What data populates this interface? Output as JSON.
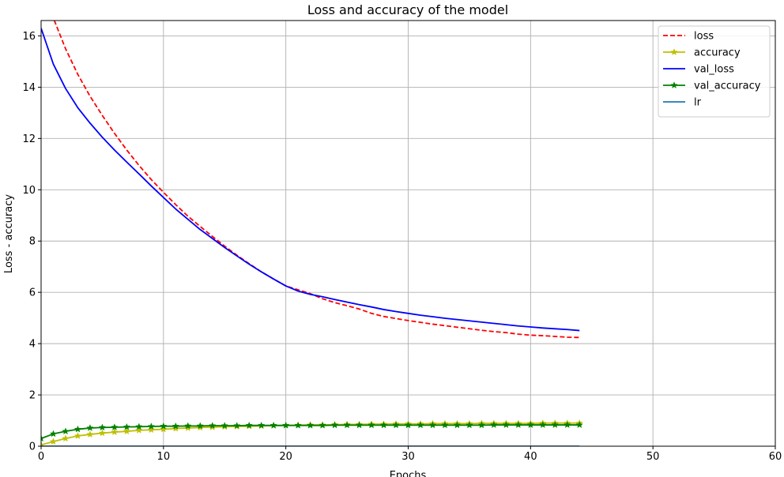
{
  "chart_data": {
    "type": "line",
    "title": "Loss and accuracy of the model",
    "xlabel": "Epochs",
    "ylabel": "Loss - accuracy",
    "xlim": [
      0,
      60
    ],
    "ylim": [
      0,
      16.6
    ],
    "xticks": [
      0,
      10,
      20,
      30,
      40,
      50,
      60
    ],
    "yticks": [
      0,
      2,
      4,
      6,
      8,
      10,
      12,
      14,
      16
    ],
    "grid": true,
    "legend_position": "top-right",
    "x": [
      0,
      1,
      2,
      3,
      4,
      5,
      6,
      7,
      8,
      9,
      10,
      11,
      12,
      13,
      14,
      15,
      16,
      17,
      18,
      19,
      20,
      21,
      22,
      23,
      24,
      25,
      26,
      27,
      28,
      29,
      30,
      31,
      32,
      33,
      34,
      35,
      36,
      37,
      38,
      39,
      40,
      41,
      42,
      43,
      44
    ],
    "series": [
      {
        "name": "loss",
        "color": "#ff0000",
        "style": "dashed",
        "marker": "none",
        "values": [
          17.9,
          16.7,
          15.5,
          14.5,
          13.65,
          12.9,
          12.2,
          11.55,
          10.95,
          10.4,
          9.9,
          9.42,
          8.97,
          8.57,
          8.18,
          7.8,
          7.45,
          7.12,
          6.8,
          6.52,
          6.25,
          6.1,
          5.95,
          5.75,
          5.6,
          5.48,
          5.35,
          5.18,
          5.06,
          4.98,
          4.9,
          4.83,
          4.76,
          4.7,
          4.64,
          4.58,
          4.52,
          4.47,
          4.43,
          4.37,
          4.33,
          4.31,
          4.28,
          4.25,
          4.24
        ]
      },
      {
        "name": "accuracy",
        "color": "#bfbf00",
        "style": "solid",
        "marker": "star",
        "values": [
          0.05,
          0.18,
          0.3,
          0.4,
          0.46,
          0.51,
          0.55,
          0.58,
          0.62,
          0.64,
          0.66,
          0.69,
          0.71,
          0.73,
          0.74,
          0.76,
          0.77,
          0.78,
          0.79,
          0.8,
          0.81,
          0.82,
          0.83,
          0.83,
          0.84,
          0.85,
          0.85,
          0.86,
          0.86,
          0.87,
          0.87,
          0.87,
          0.88,
          0.88,
          0.88,
          0.88,
          0.89,
          0.89,
          0.89,
          0.89,
          0.89,
          0.9,
          0.9,
          0.9,
          0.9
        ]
      },
      {
        "name": "val_loss",
        "color": "#0000ff",
        "style": "solid",
        "marker": "none",
        "values": [
          16.3,
          14.9,
          13.95,
          13.2,
          12.6,
          12.05,
          11.55,
          11.08,
          10.62,
          10.15,
          9.7,
          9.25,
          8.85,
          8.45,
          8.1,
          7.75,
          7.42,
          7.1,
          6.8,
          6.52,
          6.25,
          6.05,
          5.92,
          5.83,
          5.72,
          5.62,
          5.52,
          5.43,
          5.33,
          5.25,
          5.18,
          5.11,
          5.05,
          4.99,
          4.94,
          4.89,
          4.84,
          4.79,
          4.74,
          4.69,
          4.65,
          4.61,
          4.58,
          4.55,
          4.51
        ]
      },
      {
        "name": "val_accuracy",
        "color": "#008000",
        "style": "solid",
        "marker": "star",
        "values": [
          0.3,
          0.48,
          0.58,
          0.66,
          0.71,
          0.73,
          0.74,
          0.75,
          0.76,
          0.77,
          0.78,
          0.78,
          0.79,
          0.79,
          0.8,
          0.8,
          0.8,
          0.81,
          0.81,
          0.81,
          0.81,
          0.81,
          0.81,
          0.81,
          0.82,
          0.82,
          0.82,
          0.82,
          0.82,
          0.82,
          0.82,
          0.82,
          0.82,
          0.82,
          0.82,
          0.82,
          0.82,
          0.83,
          0.83,
          0.83,
          0.83,
          0.83,
          0.83,
          0.83,
          0.83
        ]
      },
      {
        "name": "lr",
        "color": "#1f77b4",
        "style": "solid",
        "marker": "none",
        "values": [
          0.001,
          0.001,
          0.001,
          0.001,
          0.001,
          0.001,
          0.001,
          0.001,
          0.001,
          0.001,
          0.001,
          0.001,
          0.001,
          0.001,
          0.001,
          0.001,
          0.001,
          0.001,
          0.001,
          0.001,
          0.001,
          0.001,
          0.001,
          0.001,
          0.001,
          0.001,
          0.001,
          0.001,
          0.001,
          0.001,
          0.001,
          0.001,
          0.001,
          0.001,
          0.001,
          0.001,
          0.001,
          0.001,
          0.001,
          0.001,
          0.001,
          0.001,
          0.001,
          0.001,
          0.001
        ]
      }
    ]
  }
}
